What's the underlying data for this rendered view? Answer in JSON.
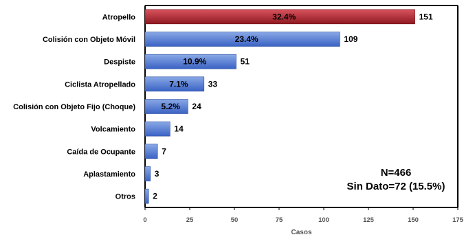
{
  "chart_data": {
    "type": "bar",
    "orientation": "horizontal",
    "categories": [
      "Atropello",
      "Colisión con Objeto Móvil",
      "Despiste",
      "Ciclista Atropellado",
      "Colisión con Objeto Fijo (Choque)",
      "Volcamiento",
      "Caída de Ocupante",
      "Aplastamiento",
      "Otros"
    ],
    "values": [
      151,
      109,
      51,
      33,
      24,
      14,
      7,
      3,
      2
    ],
    "percent_labels": [
      "32.4%",
      "23.4%",
      "10.9%",
      "7.1%",
      "5.2%",
      "",
      "",
      "",
      ""
    ],
    "highlight_index": 0,
    "xlabel": "Casos",
    "xlim": [
      0,
      175
    ],
    "xticks": [
      0,
      25,
      50,
      75,
      100,
      125,
      150,
      175
    ],
    "grid": false,
    "annotation": [
      "N=466",
      "Sin Dato=72 (15.5%)"
    ],
    "colors": {
      "highlight_top": "#d9535e",
      "highlight_bottom": "#8e1820",
      "bar_top": "#8aa9e6",
      "bar_bottom": "#3a62c4",
      "axis": "#000000"
    }
  }
}
